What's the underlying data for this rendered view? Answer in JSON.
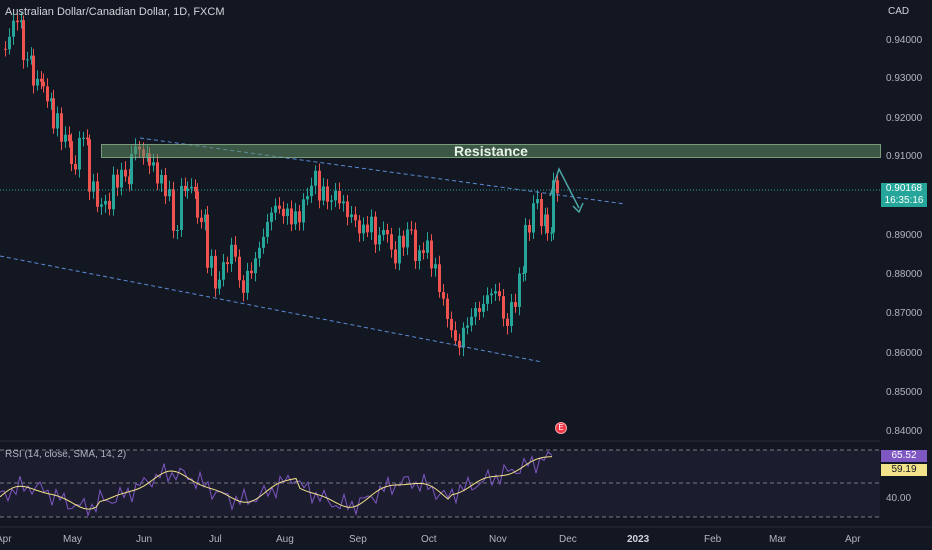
{
  "header": {
    "title": "Australian Dollar/Canadian Dollar, 1D, FXCM",
    "currency": "CAD"
  },
  "annotation": {
    "zone_label": "Resistance",
    "earnings_marker": "E"
  },
  "price_axis": {
    "ticks": [
      "0.94000",
      "0.93000",
      "0.92000",
      "0.91000",
      "0.90000",
      "0.89000",
      "0.88000",
      "0.87000",
      "0.86000",
      "0.85000",
      "0.84000"
    ]
  },
  "last_price": {
    "value": "0.90168",
    "countdown": "16:35:16",
    "color": "#26a69a"
  },
  "time_axis": {
    "labels": [
      "Apr",
      "May",
      "Jun",
      "Jul",
      "Aug",
      "Sep",
      "Oct",
      "Nov",
      "Dec",
      "2023",
      "Feb",
      "Mar",
      "Apr"
    ]
  },
  "rsi": {
    "title": "RSI (14, close, SMA, 14, 2)",
    "value": "65.52",
    "sma": "59.19",
    "level": "40.00",
    "rsi_color": "#7e57c2",
    "sma_color": "#f2e28a"
  },
  "colors": {
    "up": "#26a69a",
    "down": "#ef5350",
    "trend": "#5b8bd6",
    "zone": "#618c64"
  }
}
